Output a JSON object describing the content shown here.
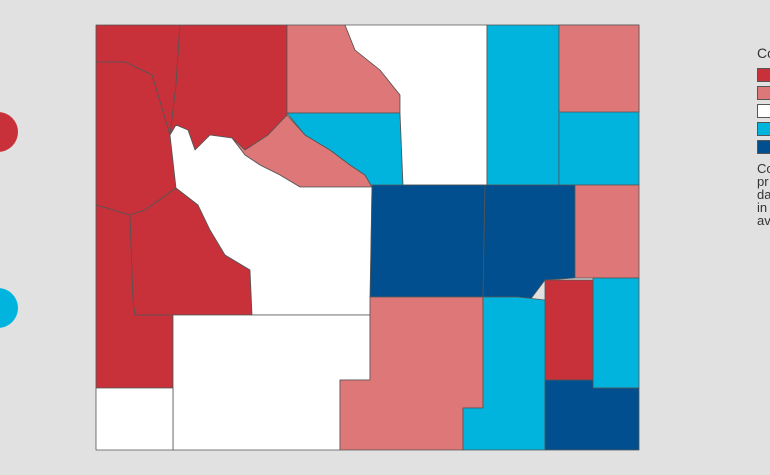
{
  "palette": {
    "background": "#e1e1e1",
    "very_low": "#c8313a",
    "low": "#de7777",
    "middle": "#ffffff",
    "high": "#00b4de",
    "very_high": "#014f8e",
    "border": "#555555"
  },
  "legend": {
    "title_fragment": "Co",
    "categories": [
      "very_low",
      "low",
      "middle",
      "high",
      "very_high"
    ],
    "note_fragments": [
      "Co",
      "pr",
      "da",
      "in",
      "av"
    ]
  },
  "counties": [
    {
      "id": "park",
      "class": "very_low"
    },
    {
      "id": "big-horn",
      "class": "very_low"
    },
    {
      "id": "hot-springs",
      "class": "low"
    },
    {
      "id": "sheridan",
      "class": "low"
    },
    {
      "id": "johnson",
      "class": "high"
    },
    {
      "id": "campbell",
      "class": "middle"
    },
    {
      "id": "crook",
      "class": "high"
    },
    {
      "id": "weston",
      "class": "high"
    },
    {
      "id": "washakie",
      "class": "low"
    },
    {
      "id": "teton",
      "class": "very_low"
    },
    {
      "id": "lincoln",
      "class": "very_low"
    },
    {
      "id": "sublette",
      "class": "very_low"
    },
    {
      "id": "fremont",
      "class": "middle"
    },
    {
      "id": "natrona",
      "class": "very_high"
    },
    {
      "id": "converse",
      "class": "very_high"
    },
    {
      "id": "niobrara",
      "class": "low"
    },
    {
      "id": "platte",
      "class": "very_low"
    },
    {
      "id": "goshen",
      "class": "high"
    },
    {
      "id": "sweetwater",
      "class": "middle"
    },
    {
      "id": "uinta",
      "class": "middle"
    },
    {
      "id": "carbon",
      "class": "low"
    },
    {
      "id": "albany",
      "class": "high"
    },
    {
      "id": "laramie",
      "class": "very_high"
    }
  ]
}
